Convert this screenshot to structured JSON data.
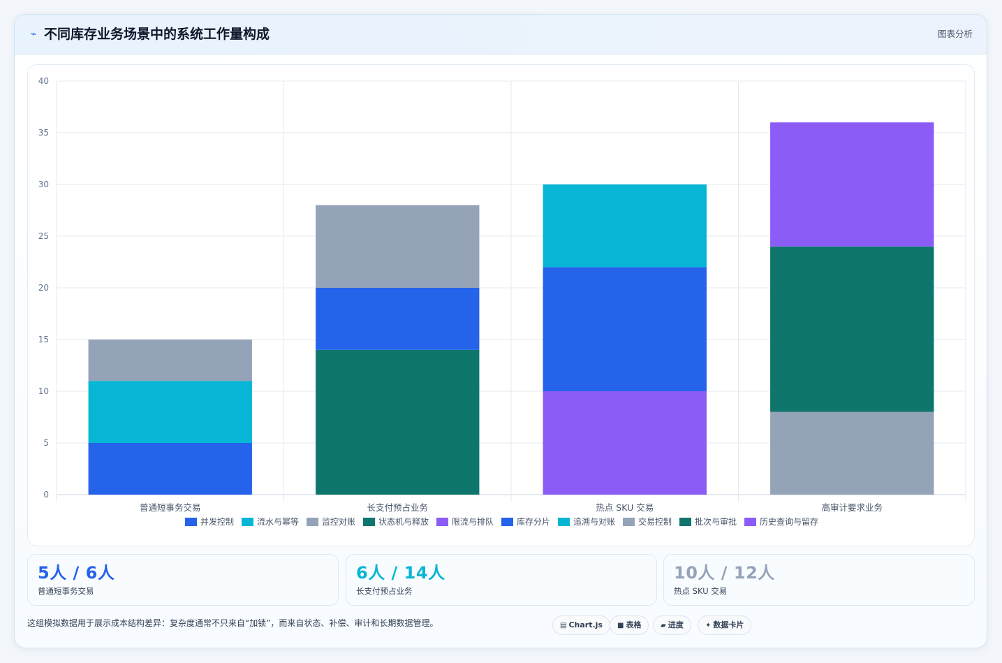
{
  "header": {
    "icon": "sparkline-icon",
    "title": "不同库存业务场景中的系统工作量构成",
    "action_label": "图表分析"
  },
  "chart_data": {
    "type": "bar",
    "stacked": true,
    "categories": [
      "普通短事务交易",
      "长支付预占业务",
      "热点 SKU 交易",
      "高审计要求业务"
    ],
    "ylim": [
      0,
      40
    ],
    "yticks": [
      0,
      5,
      10,
      15,
      20,
      25,
      30,
      35,
      40
    ],
    "grid": true,
    "legend_position": "bottom",
    "series": [
      {
        "name": "并发控制",
        "color": "#2563eb",
        "values": [
          5,
          0,
          0,
          0
        ]
      },
      {
        "name": "流水与幂等",
        "color": "#06b6d4",
        "values": [
          6,
          0,
          0,
          0
        ]
      },
      {
        "name": "监控对账",
        "color": "#94a3b8",
        "values": [
          4,
          0,
          0,
          0
        ]
      },
      {
        "name": "状态机与释放",
        "color": "#0f766e",
        "values": [
          0,
          14,
          0,
          0
        ]
      },
      {
        "name": "限流与排队",
        "color": "#8b5cf6",
        "values": [
          0,
          0,
          10,
          0
        ]
      },
      {
        "name": "库存分片",
        "color": "#2563eb",
        "values": [
          0,
          6,
          12,
          0
        ]
      },
      {
        "name": "追溯与对账",
        "color": "#06b6d4",
        "values": [
          0,
          0,
          8,
          0
        ]
      },
      {
        "name": "交易控制",
        "color": "#94a3b8",
        "values": [
          0,
          8,
          0,
          8
        ]
      },
      {
        "name": "批次与审批",
        "color": "#0f766e",
        "values": [
          0,
          0,
          0,
          16
        ]
      },
      {
        "name": "历史查询与留存",
        "color": "#8b5cf6",
        "values": [
          0,
          0,
          0,
          12
        ]
      }
    ]
  },
  "stats": [
    {
      "value": "5人 / 6人",
      "label": "普通短事务交易",
      "color": "#2563eb"
    },
    {
      "value": "6人 / 14人",
      "label": "长支付预占业务",
      "color": "#06b6d4"
    },
    {
      "value": "10人 / 12人",
      "label": "热点 SKU 交易",
      "color": "#94a3b8"
    }
  ],
  "footnote": "这组模拟数据用于展示成本结构差异：复杂度通常不只来自“加锁”，而来自状态、补偿、审计和长期数据管理。",
  "chips": [
    {
      "glyph": "▤",
      "label": "Chart.js"
    },
    {
      "glyph": "■",
      "label": "表格"
    },
    {
      "glyph": "▰",
      "label": "进度"
    },
    {
      "glyph": "✦",
      "label": "数据卡片"
    }
  ]
}
